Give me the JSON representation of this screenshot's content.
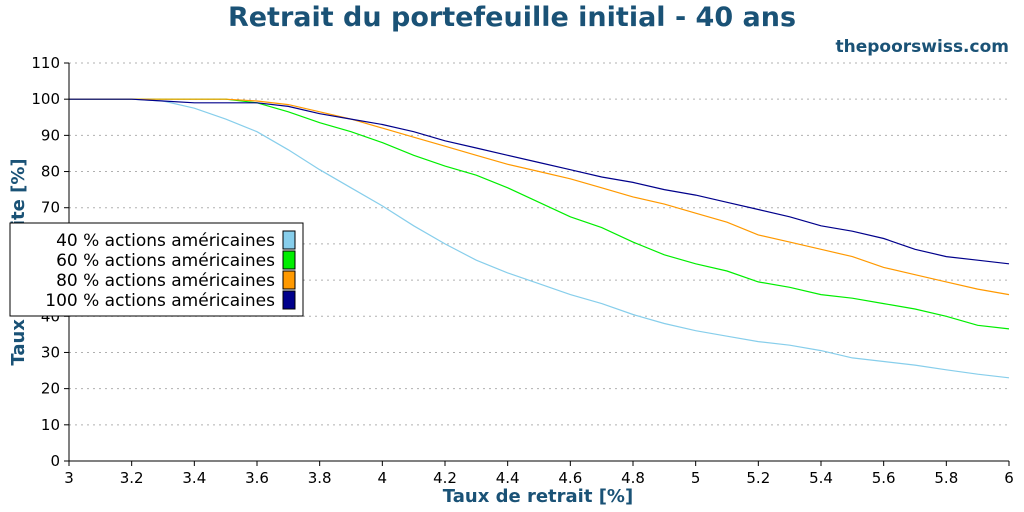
{
  "chart_data": {
    "type": "line",
    "title": "Retrait du portefeuille initial - 40 ans",
    "subtitle": "thepoorswiss.com",
    "xlabel": "Taux de retrait [%]",
    "ylabel": "Taux de réussite [%]",
    "xlim": [
      3,
      6
    ],
    "ylim": [
      0,
      110
    ],
    "x_ticks": [
      "3",
      "3.2",
      "3.4",
      "3.6",
      "3.8",
      "4",
      "4.2",
      "4.4",
      "4.6",
      "4.8",
      "5",
      "5.2",
      "5.4",
      "5.6",
      "5.8",
      "6"
    ],
    "y_ticks": [
      "0",
      "10",
      "20",
      "30",
      "40",
      "50",
      "60",
      "70",
      "80",
      "90",
      "100",
      "110"
    ],
    "grid": "horizontal dotted",
    "legend_position": "left",
    "x": [
      3.0,
      3.1,
      3.2,
      3.3,
      3.4,
      3.5,
      3.6,
      3.7,
      3.8,
      3.9,
      4.0,
      4.1,
      4.2,
      4.3,
      4.4,
      4.5,
      4.6,
      4.7,
      4.8,
      4.9,
      5.0,
      5.1,
      5.2,
      5.3,
      5.4,
      5.5,
      5.6,
      5.7,
      5.8,
      5.9,
      6.0
    ],
    "series": [
      {
        "name": "40 % actions américaines",
        "color": "#87ceeb",
        "values": [
          100,
          100,
          100,
          99.5,
          97.5,
          94.5,
          91,
          86,
          80.5,
          75.5,
          70.5,
          65,
          60,
          55.5,
          52,
          49,
          46,
          43.5,
          40.5,
          38,
          36,
          34.5,
          33,
          32,
          30.5,
          28.5,
          27.5,
          26.5,
          25.2,
          24,
          23
        ]
      },
      {
        "name": "60 % actions américaines",
        "color": "#00ee00",
        "values": [
          100,
          100,
          100,
          100,
          100,
          100,
          99,
          96.5,
          93.5,
          91,
          88,
          84.5,
          81.5,
          79,
          75.5,
          71.5,
          67.5,
          64.5,
          60.5,
          57,
          54.5,
          52.5,
          49.5,
          48,
          46,
          45,
          43.5,
          42,
          40,
          37.5,
          36.5
        ]
      },
      {
        "name": "80 % actions américaines",
        "color": "#ff9900",
        "values": [
          100,
          100,
          100,
          100,
          100,
          100,
          99.5,
          98.5,
          96.5,
          94.5,
          92,
          89.5,
          87,
          84.5,
          82,
          80,
          78,
          75.5,
          73,
          71,
          68.5,
          66,
          62.5,
          60.5,
          58.5,
          56.5,
          53.5,
          51.5,
          49.5,
          47.5,
          46
        ]
      },
      {
        "name": "100 % actions américaines",
        "color": "#00008b",
        "values": [
          100,
          100,
          100,
          99.5,
          99,
          99,
          99,
          98,
          96,
          94.5,
          93,
          91,
          88.5,
          86.5,
          84.5,
          82.5,
          80.5,
          78.5,
          77,
          75,
          73.5,
          71.5,
          69.5,
          67.5,
          65,
          63.5,
          61.5,
          58.5,
          56.5,
          55.5,
          54.5
        ]
      }
    ]
  }
}
